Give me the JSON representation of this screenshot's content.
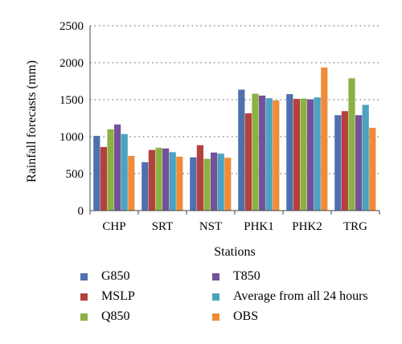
{
  "chart_data": {
    "type": "bar",
    "title": "",
    "xlabel": "Stations",
    "ylabel": "Rainfall forecasts (mm)",
    "ylim": [
      0,
      2500
    ],
    "yticks": [
      "0",
      "500",
      "1000",
      "1500",
      "2000",
      "2500"
    ],
    "grid": "horizontal dotted",
    "legend_position": "bottom",
    "categories": [
      "CHP",
      "SRT",
      "NST",
      "PHK1",
      "PHK2",
      "TRG"
    ],
    "series": [
      {
        "name": "G850",
        "color": "#4f6fae",
        "values": [
          1010,
          655,
          720,
          1635,
          1575,
          1290
        ]
      },
      {
        "name": "MSLP",
        "color": "#b5413d",
        "values": [
          860,
          820,
          885,
          1315,
          1510,
          1345
        ]
      },
      {
        "name": "Q850",
        "color": "#8cb042",
        "values": [
          1100,
          850,
          700,
          1580,
          1515,
          1790
        ]
      },
      {
        "name": "T850",
        "color": "#74519a",
        "values": [
          1165,
          840,
          785,
          1555,
          1505,
          1290
        ]
      },
      {
        "name": "Average from all 24 hours",
        "color": "#4ba3bf",
        "values": [
          1035,
          790,
          770,
          1520,
          1530,
          1430
        ]
      },
      {
        "name": "OBS",
        "color": "#ef8c3a",
        "values": [
          740,
          730,
          715,
          1490,
          1935,
          1120
        ]
      }
    ]
  }
}
